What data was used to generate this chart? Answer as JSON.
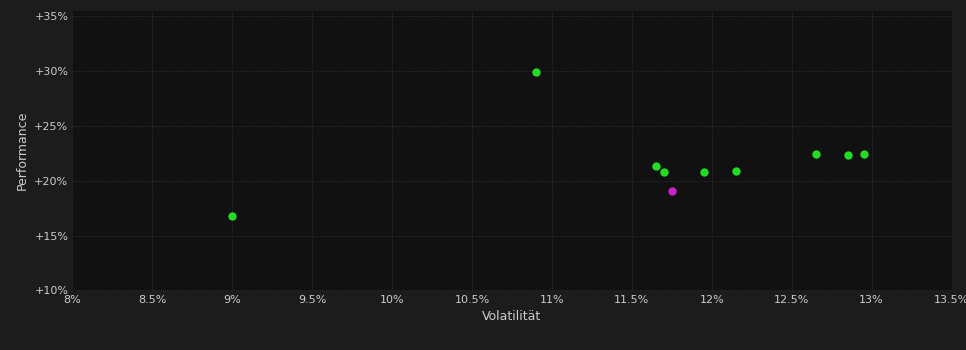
{
  "xlabel": "Volatilität",
  "ylabel": "Performance",
  "bg_color": "#1c1c1c",
  "plot_bg_color": "#111111",
  "text_color": "#cccccc",
  "grid_color": "#3a3a3a",
  "xlim": [
    0.08,
    0.135
  ],
  "ylim": [
    0.1,
    0.355
  ],
  "xticks": [
    0.08,
    0.085,
    0.09,
    0.095,
    0.1,
    0.105,
    0.11,
    0.115,
    0.12,
    0.125,
    0.13,
    0.135
  ],
  "yticks": [
    0.1,
    0.15,
    0.2,
    0.25,
    0.3,
    0.35
  ],
  "xtick_labels": [
    "8%",
    "8.5%",
    "9%",
    "9.5%",
    "10%",
    "10.5%",
    "11%",
    "11.5%",
    "12%",
    "12.5%",
    "13%",
    "13.5%"
  ],
  "ytick_labels": [
    "+10%",
    "+15%",
    "+20%",
    "+25%",
    "+30%",
    "+35%"
  ],
  "points_green": [
    [
      0.09,
      0.168
    ],
    [
      0.109,
      0.299
    ],
    [
      0.1165,
      0.213
    ],
    [
      0.117,
      0.208
    ],
    [
      0.1195,
      0.208
    ],
    [
      0.1215,
      0.209
    ],
    [
      0.1265,
      0.224
    ],
    [
      0.1285,
      0.223
    ],
    [
      0.1295,
      0.224
    ]
  ],
  "points_magenta": [
    [
      0.1175,
      0.191
    ]
  ],
  "green_color": "#22dd22",
  "magenta_color": "#cc22cc",
  "marker_size": 6
}
